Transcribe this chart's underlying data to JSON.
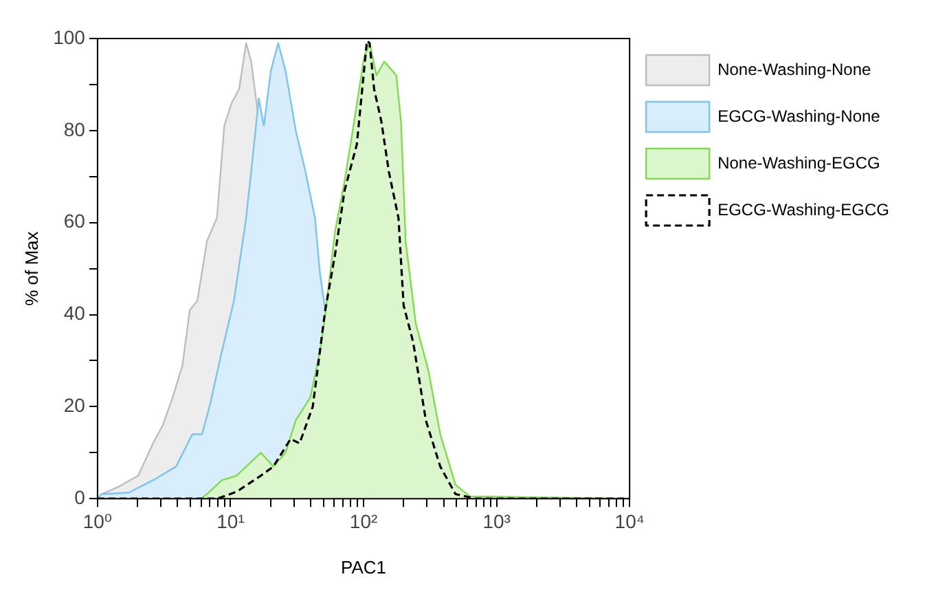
{
  "chart_data": {
    "type": "area",
    "xlabel": "PAC1",
    "ylabel": "% of Max",
    "log": "x",
    "xlim": [
      1,
      10000
    ],
    "ylim": [
      0,
      100
    ],
    "xticks": [
      {
        "value": 1,
        "label": "10⁰"
      },
      {
        "value": 2,
        "label": null
      },
      {
        "value": 3,
        "label": null
      },
      {
        "value": 4,
        "label": null
      },
      {
        "value": 5,
        "label": null
      },
      {
        "value": 6,
        "label": null
      },
      {
        "value": 7,
        "label": null
      },
      {
        "value": 8,
        "label": null
      },
      {
        "value": 9,
        "label": null
      },
      {
        "value": 10,
        "label": "10¹"
      },
      {
        "value": 20,
        "label": null
      },
      {
        "value": 30,
        "label": null
      },
      {
        "value": 40,
        "label": null
      },
      {
        "value": 50,
        "label": null
      },
      {
        "value": 60,
        "label": null
      },
      {
        "value": 70,
        "label": null
      },
      {
        "value": 80,
        "label": null
      },
      {
        "value": 90,
        "label": null
      },
      {
        "value": 100,
        "label": "10²"
      },
      {
        "value": 200,
        "label": null
      },
      {
        "value": 300,
        "label": null
      },
      {
        "value": 400,
        "label": null
      },
      {
        "value": 500,
        "label": null
      },
      {
        "value": 600,
        "label": null
      },
      {
        "value": 700,
        "label": null
      },
      {
        "value": 800,
        "label": null
      },
      {
        "value": 900,
        "label": null
      },
      {
        "value": 1000,
        "label": "10³"
      },
      {
        "value": 2000,
        "label": null
      },
      {
        "value": 3000,
        "label": null
      },
      {
        "value": 4000,
        "label": null
      },
      {
        "value": 5000,
        "label": null
      },
      {
        "value": 6000,
        "label": null
      },
      {
        "value": 7000,
        "label": null
      },
      {
        "value": 8000,
        "label": null
      },
      {
        "value": 9000,
        "label": null
      },
      {
        "value": 10000,
        "label": "10⁴"
      }
    ],
    "yticks": [
      0,
      {
        "value": 10,
        "label": null
      },
      20,
      {
        "value": 30,
        "label": null
      },
      40,
      {
        "value": 50,
        "label": null
      },
      60,
      {
        "value": 70,
        "label": null
      },
      80,
      {
        "value": 90,
        "label": null
      },
      100
    ],
    "legend": "right",
    "grid": false,
    "series": [
      {
        "name": "None-Washing-None",
        "color": "#bdbdbd",
        "x": [
          1,
          1.07,
          1.44,
          2.02,
          2.61,
          3.1,
          3.67,
          4.35,
          4.94,
          5.63,
          6.65,
          7.9,
          8.97,
          10.2,
          11.6,
          13.1,
          14.3,
          16
        ],
        "values": [
          0,
          1,
          2.6,
          5,
          12,
          16,
          22,
          29,
          41,
          43,
          56,
          61,
          81,
          86,
          89,
          99,
          95,
          84
        ]
      },
      {
        "name": "EGCG-Washing-None",
        "color": "#79c3f5",
        "x": [
          1,
          1.07,
          1.71,
          2.61,
          3.9,
          5.16,
          6.1,
          6.95,
          8.6,
          10.6,
          13.1,
          14.9,
          16.3,
          17.8,
          20.1,
          22.8,
          25.9,
          30.9,
          36.6,
          43.1,
          47,
          51.5
        ],
        "values": [
          0,
          1,
          1.3,
          4,
          7,
          14,
          14,
          20,
          32,
          43,
          61,
          76,
          87,
          81,
          93,
          99,
          93,
          80,
          71,
          61,
          49,
          41
        ]
      },
      {
        "name": "None-Washing-EGCG",
        "color": "#7fdc4e",
        "x": [
          1,
          6,
          6.65,
          8.6,
          11.1,
          16.9,
          21,
          25.9,
          30.9,
          39.8,
          47,
          51.5,
          61,
          72,
          85,
          101,
          111,
          125,
          143,
          176,
          191,
          207,
          247,
          306,
          377,
          491,
          630,
          10000
        ],
        "values": [
          0,
          0,
          1,
          4,
          5,
          10,
          7,
          10,
          17,
          22,
          32,
          40,
          58,
          69,
          82,
          96,
          99,
          92,
          95,
          92,
          82,
          56,
          38,
          28,
          14,
          3,
          0.5,
          0
        ]
      },
      {
        "name": "EGCG-Washing-EGCG",
        "color": "#000000",
        "type": "line",
        "line_style": "dashed",
        "x": [
          1,
          7.9,
          11.1,
          16.9,
          21,
          28.3,
          33,
          41.5,
          51.5,
          61,
          72,
          89,
          106,
          111,
          120,
          136,
          155,
          183,
          200,
          236,
          294,
          377,
          491,
          700,
          10000
        ],
        "values": [
          0,
          0,
          1.5,
          5,
          7,
          13,
          12,
          20,
          41,
          53,
          67,
          77,
          99.5,
          99,
          89,
          82,
          71,
          61,
          42,
          34,
          17,
          7,
          1,
          0,
          0
        ]
      }
    ]
  }
}
